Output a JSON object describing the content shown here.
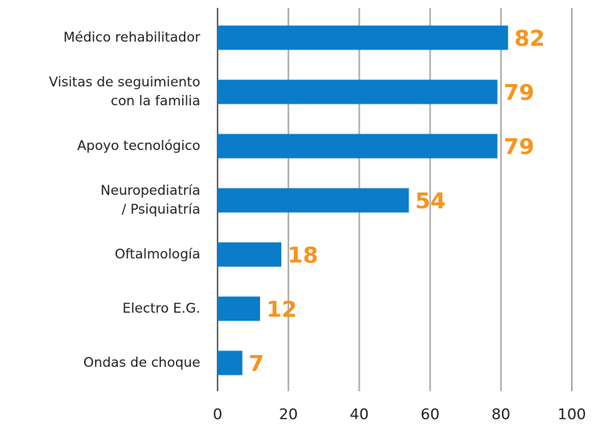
{
  "chart_data": {
    "type": "bar",
    "orientation": "horizontal",
    "categories": [
      "Médico rehabilitador",
      "Visitas de seguimiento\ncon la familia",
      "Apoyo tecnológico",
      "Neuropediatría\n/ Psiquiatría",
      "Oftalmología",
      "Electro E.G.",
      "Ondas de choque"
    ],
    "values": [
      82,
      79,
      79,
      54,
      18,
      12,
      7
    ],
    "color": "#0a7cc9",
    "label_color": "#f7941d",
    "xlim": [
      0,
      100
    ],
    "xticks": [
      0,
      20,
      40,
      60,
      80,
      100
    ],
    "grid": true
  }
}
